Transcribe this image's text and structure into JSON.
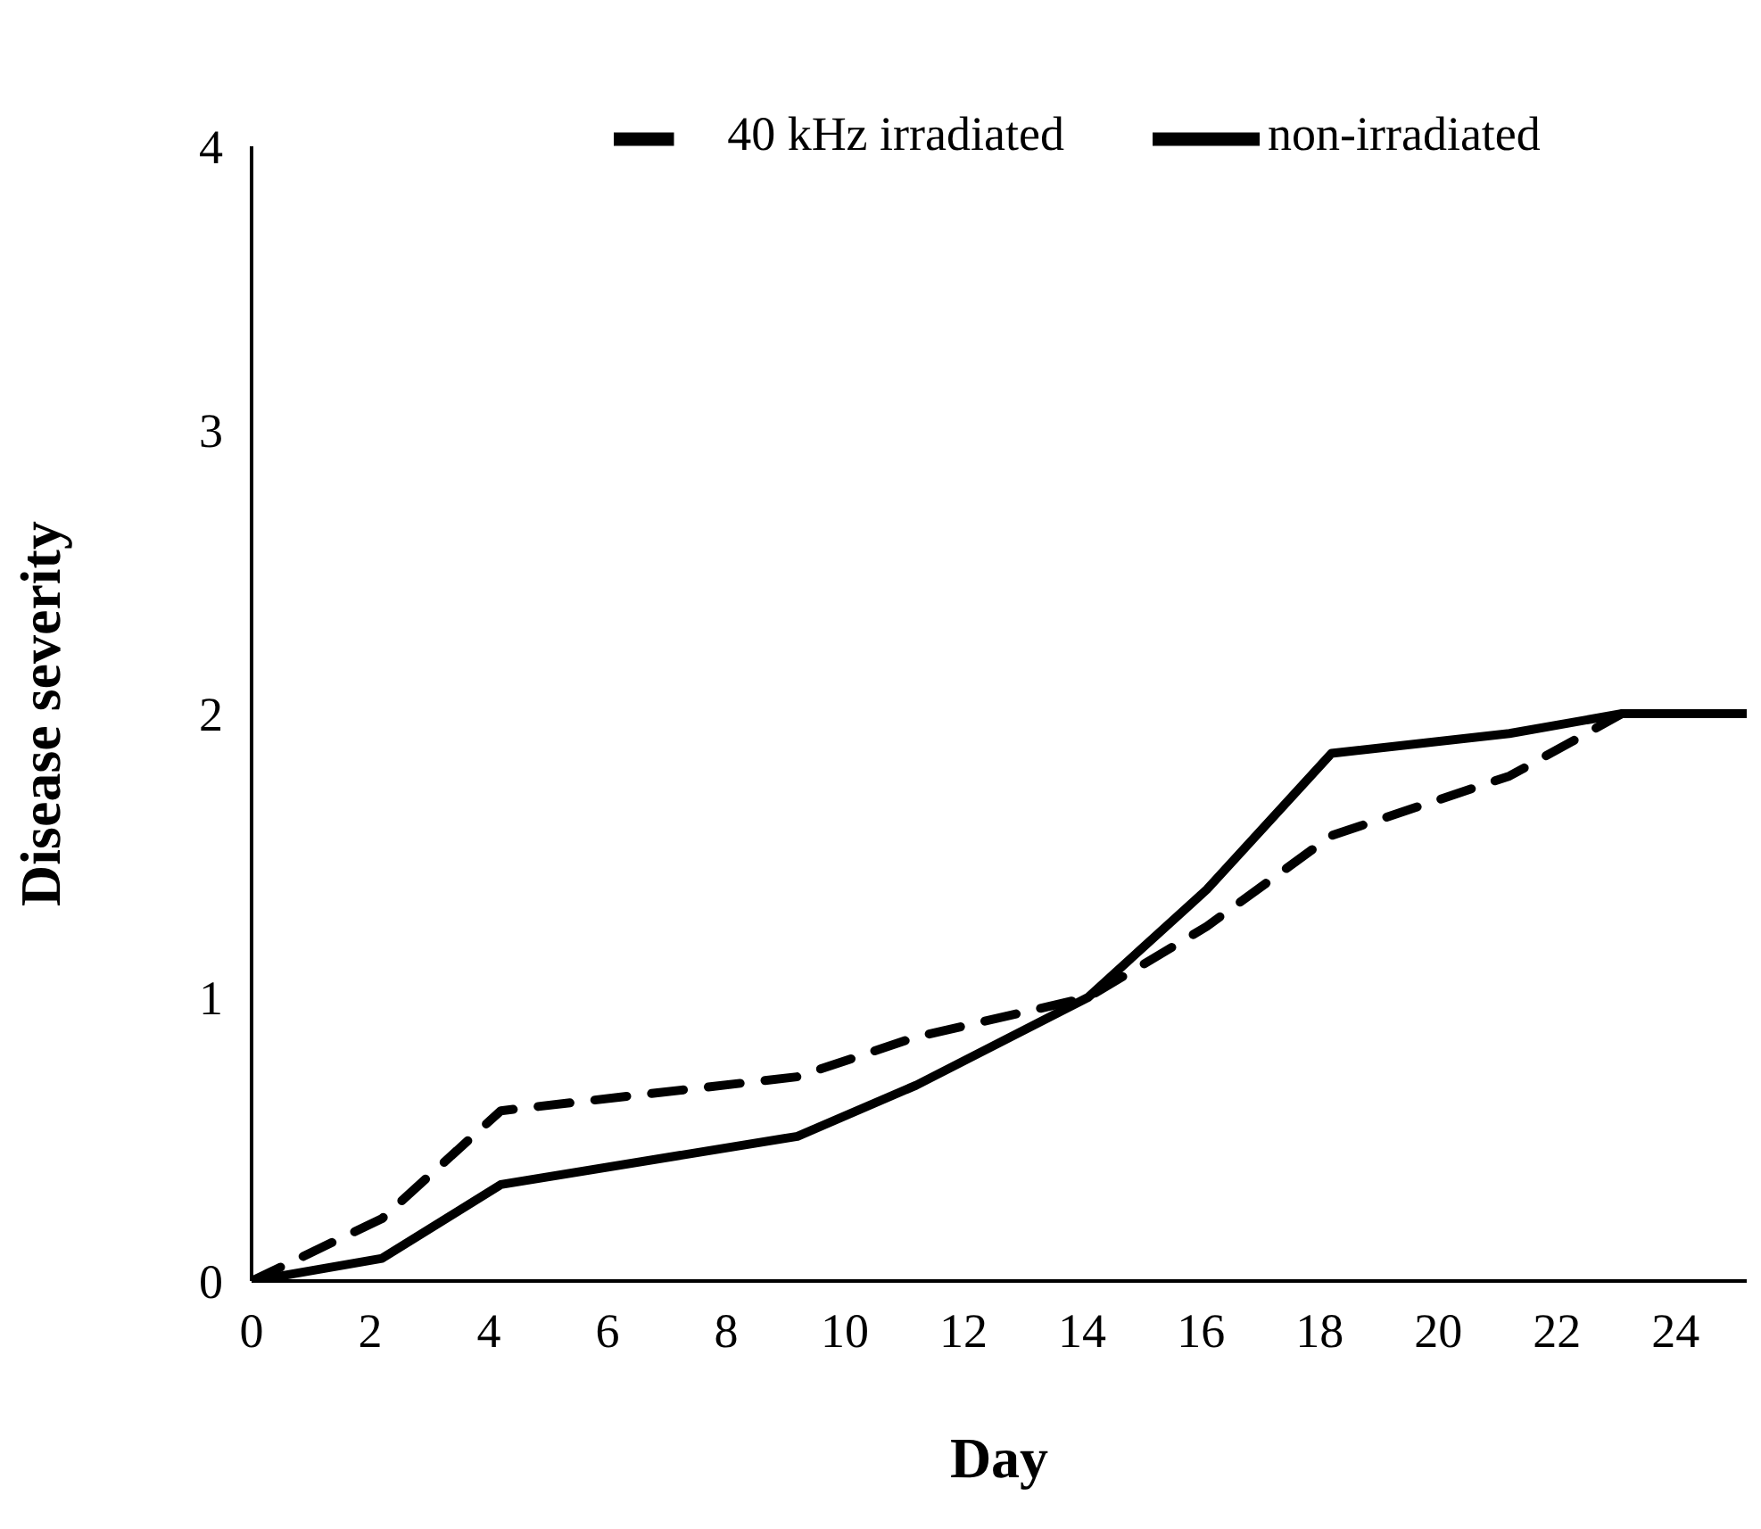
{
  "chart_data": {
    "type": "line",
    "xlabel": "Day",
    "ylabel": "Disease severity",
    "x": [
      0,
      2.2,
      4.2,
      9.2,
      11.2,
      14.1,
      16.1,
      18.2,
      21.2,
      23.1,
      25.2
    ],
    "series": [
      {
        "name": "40 kHz irradiated",
        "color": "#000000",
        "line_style": "dashed",
        "values": [
          0,
          0.22,
          0.6,
          0.72,
          0.86,
          1.0,
          1.25,
          1.57,
          1.78,
          2.0,
          2.0
        ]
      },
      {
        "name": "non-irradiated",
        "color": "#000000",
        "line_style": "solid",
        "values": [
          0,
          0.08,
          0.34,
          0.51,
          0.69,
          1.0,
          1.38,
          1.86,
          1.93,
          2.0,
          2.0
        ]
      }
    ],
    "xlim": [
      0,
      25.2
    ],
    "xticks": [
      0,
      2,
      4,
      6,
      8,
      10,
      12,
      14,
      16,
      18,
      20,
      22,
      24
    ],
    "ylim": [
      0,
      4
    ],
    "yticks": [
      0,
      1,
      2,
      3,
      4
    ],
    "grid": false,
    "legend": "top",
    "marker": "none"
  }
}
